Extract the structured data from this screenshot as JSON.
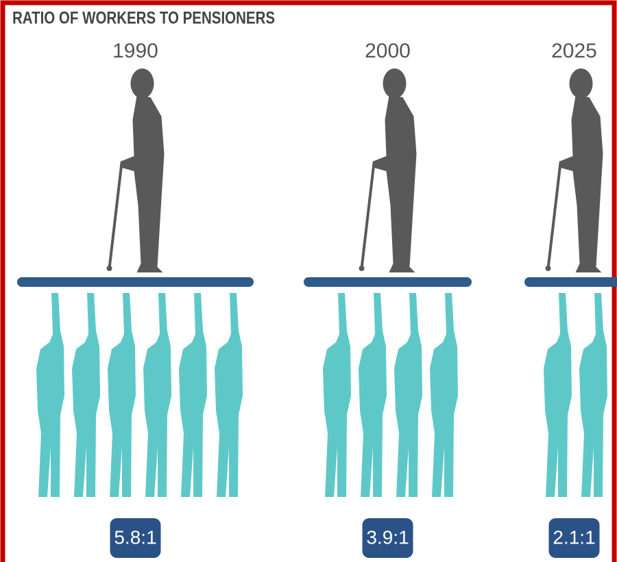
{
  "title": "RATIO OF WORKERS TO PENSIONERS",
  "panels": [
    {
      "year": "1990",
      "ratio": "5.8:1",
      "workers": 6
    },
    {
      "year": "2000",
      "ratio": "3.9:1",
      "workers": 4
    },
    {
      "year": "2025",
      "ratio": "2.1:1",
      "workers": 2
    }
  ]
}
